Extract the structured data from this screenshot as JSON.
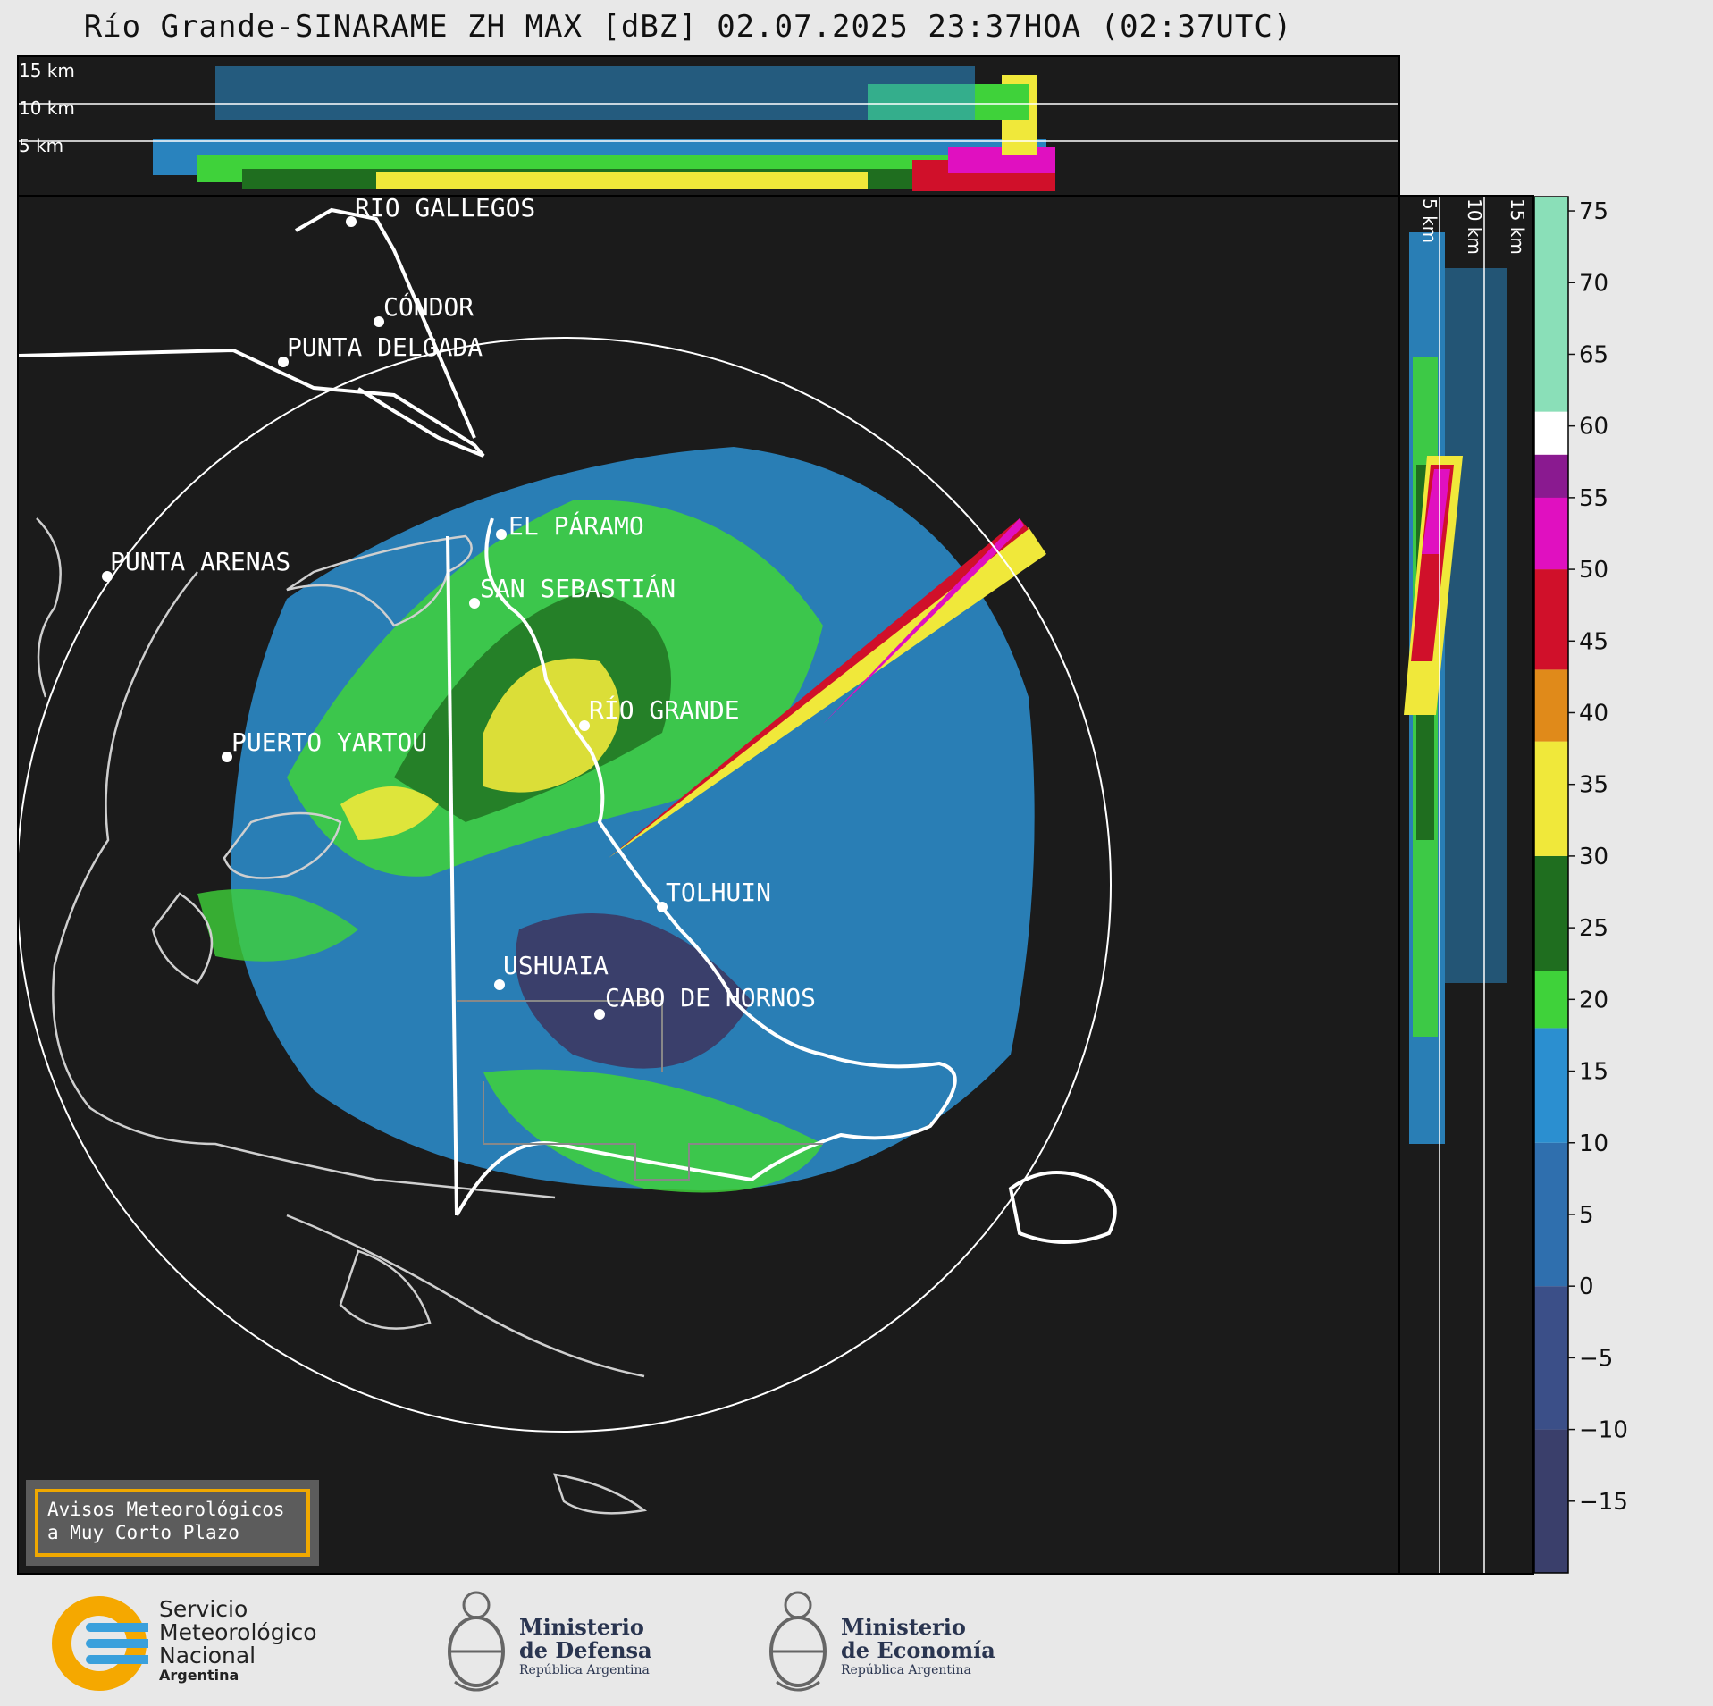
{
  "title": "Río Grande-SINARAME ZH MAX [dBZ] 02.07.2025 23:37HOA (02:37UTC)",
  "top_profile": {
    "height_labels": [
      "15 km",
      "10 km",
      "5 km"
    ]
  },
  "side_profile": {
    "height_labels": [
      "5 km",
      "10 km",
      "15 km"
    ]
  },
  "locations": [
    {
      "name": "RÍO GALLEGOS"
    },
    {
      "name": "CÓNDOR"
    },
    {
      "name": "PUNTA DELGADA"
    },
    {
      "name": "EL PÁRAMO"
    },
    {
      "name": "SAN SEBASTIÁN"
    },
    {
      "name": "PUNTA ARENAS"
    },
    {
      "name": "RÍO GRANDE"
    },
    {
      "name": "PUERTO YARTOU"
    },
    {
      "name": "TOLHUIN"
    },
    {
      "name": "USHUAIA"
    },
    {
      "name": "CABO DE HORNOS"
    }
  ],
  "colorbar": {
    "unit": "dBZ",
    "min": -20,
    "max": 76,
    "ticks": [
      "75",
      "70",
      "65",
      "60",
      "55",
      "50",
      "45",
      "40",
      "35",
      "30",
      "25",
      "20",
      "15",
      "10",
      "5",
      "0",
      "−5",
      "−10",
      "−15"
    ],
    "colors": {
      "blue_dark": "#3a3f6b",
      "blue": "#2b8fd0",
      "green": "#3fd23a",
      "dark_green": "#1f6e1f",
      "yellow": "#f0e83a",
      "orange": "#e08a1a",
      "red": "#d0102a",
      "magenta": "#e010c0",
      "purple": "#8a1a90",
      "white": "#ffffff",
      "mint": "#8adfb8"
    }
  },
  "warning_box": {
    "line1": "Avisos Meteorológicos",
    "line2": "a Muy Corto Plazo"
  },
  "logos": {
    "smn": {
      "line1": "Servicio",
      "line2": "Meteorológico",
      "line3": "Nacional",
      "line4": "Argentina"
    },
    "defensa": {
      "line1": "Ministerio",
      "line2": "de Defensa",
      "line3": "República Argentina"
    },
    "economia": {
      "line1": "Ministerio",
      "line2": "de Economía",
      "line3": "República Argentina"
    }
  }
}
